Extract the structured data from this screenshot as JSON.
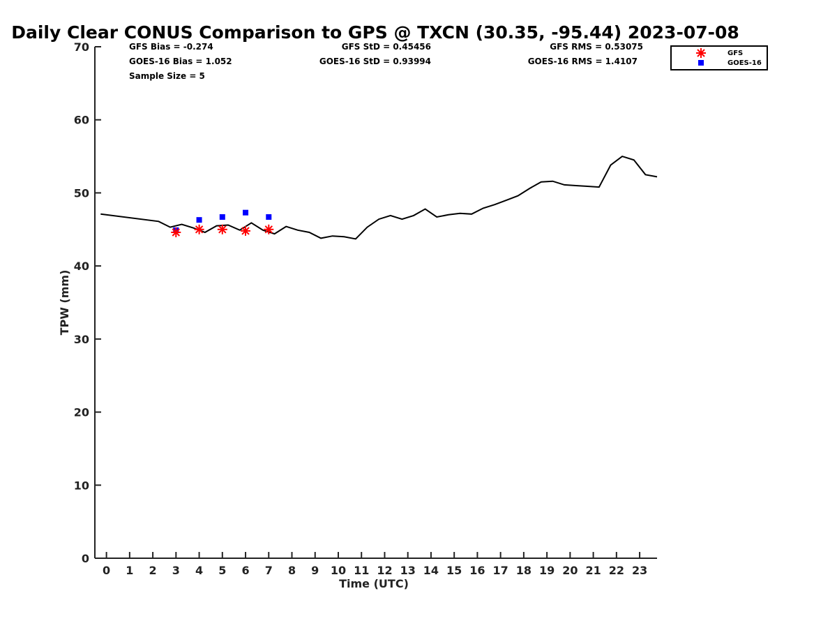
{
  "chart_data": {
    "type": "line",
    "title": "Daily Clear CONUS Comparison to GPS @ TXCN (30.35, -95.44) 2023-07-08",
    "xlabel": "Time (UTC)",
    "ylabel": "TPW (mm)",
    "xlim": [
      -0.5,
      23.75
    ],
    "ylim": [
      0,
      70
    ],
    "x_ticks": [
      0,
      1,
      2,
      3,
      4,
      5,
      6,
      7,
      8,
      9,
      10,
      11,
      12,
      13,
      14,
      15,
      16,
      17,
      18,
      19,
      20,
      21,
      22,
      23
    ],
    "y_ticks": [
      0,
      10,
      20,
      30,
      40,
      50,
      60,
      70
    ],
    "grid": false,
    "legend_position": "top-right",
    "stats": {
      "gfs_bias": "GFS Bias = -0.274",
      "goes_bias": "GOES-16 Bias = 1.052",
      "sample_size": "Sample Size = 5",
      "gfs_std": "GFS StD = 0.45456",
      "goes_std": "GOES-16 StD = 0.93994",
      "gfs_rms": "GFS RMS = 0.53075",
      "goes_rms": "GOES-16 RMS = 1.4107"
    },
    "series": [
      {
        "kind": "line",
        "color": "#000000",
        "x": [
          -0.25,
          2.25,
          2.75,
          3.25,
          3.75,
          4.25,
          4.75,
          5.25,
          5.75,
          6.25,
          6.75,
          7.25,
          7.75,
          8.25,
          8.75,
          9.25,
          9.75,
          10.25,
          10.75,
          11.25,
          11.75,
          12.25,
          12.75,
          13.25,
          13.75,
          14.25,
          14.75,
          15.25,
          15.75,
          16.25,
          16.75,
          17.25,
          17.75,
          18.25,
          18.75,
          19.25,
          19.75,
          20.25,
          20.75,
          21.25,
          21.75,
          22.25,
          22.75,
          23.25,
          23.75
        ],
        "y": [
          47.1,
          46.1,
          45.3,
          45.7,
          45.2,
          44.6,
          45.5,
          45.6,
          44.9,
          45.9,
          44.9,
          44.4,
          45.4,
          44.9,
          44.6,
          43.8,
          44.1,
          44.0,
          43.7,
          45.3,
          46.4,
          46.9,
          46.4,
          46.9,
          47.8,
          46.7,
          47.0,
          47.2,
          47.1,
          47.9,
          48.4,
          49.0,
          49.6,
          50.6,
          51.5,
          51.6,
          51.1,
          51.0,
          50.9,
          50.8,
          53.8,
          55.0,
          54.5,
          52.5,
          52.2
        ]
      },
      {
        "name": "GFS",
        "kind": "scatter",
        "marker": "asterisk",
        "color": "#ff0000",
        "x": [
          3,
          4,
          5,
          6,
          7
        ],
        "y": [
          44.6,
          45.0,
          45.0,
          44.8,
          45.0
        ]
      },
      {
        "name": "GOES-16",
        "kind": "scatter",
        "marker": "square",
        "color": "#0000ff",
        "x": [
          3,
          4,
          5,
          6,
          7
        ],
        "y": [
          44.9,
          46.3,
          46.7,
          47.3,
          46.7
        ]
      }
    ]
  }
}
